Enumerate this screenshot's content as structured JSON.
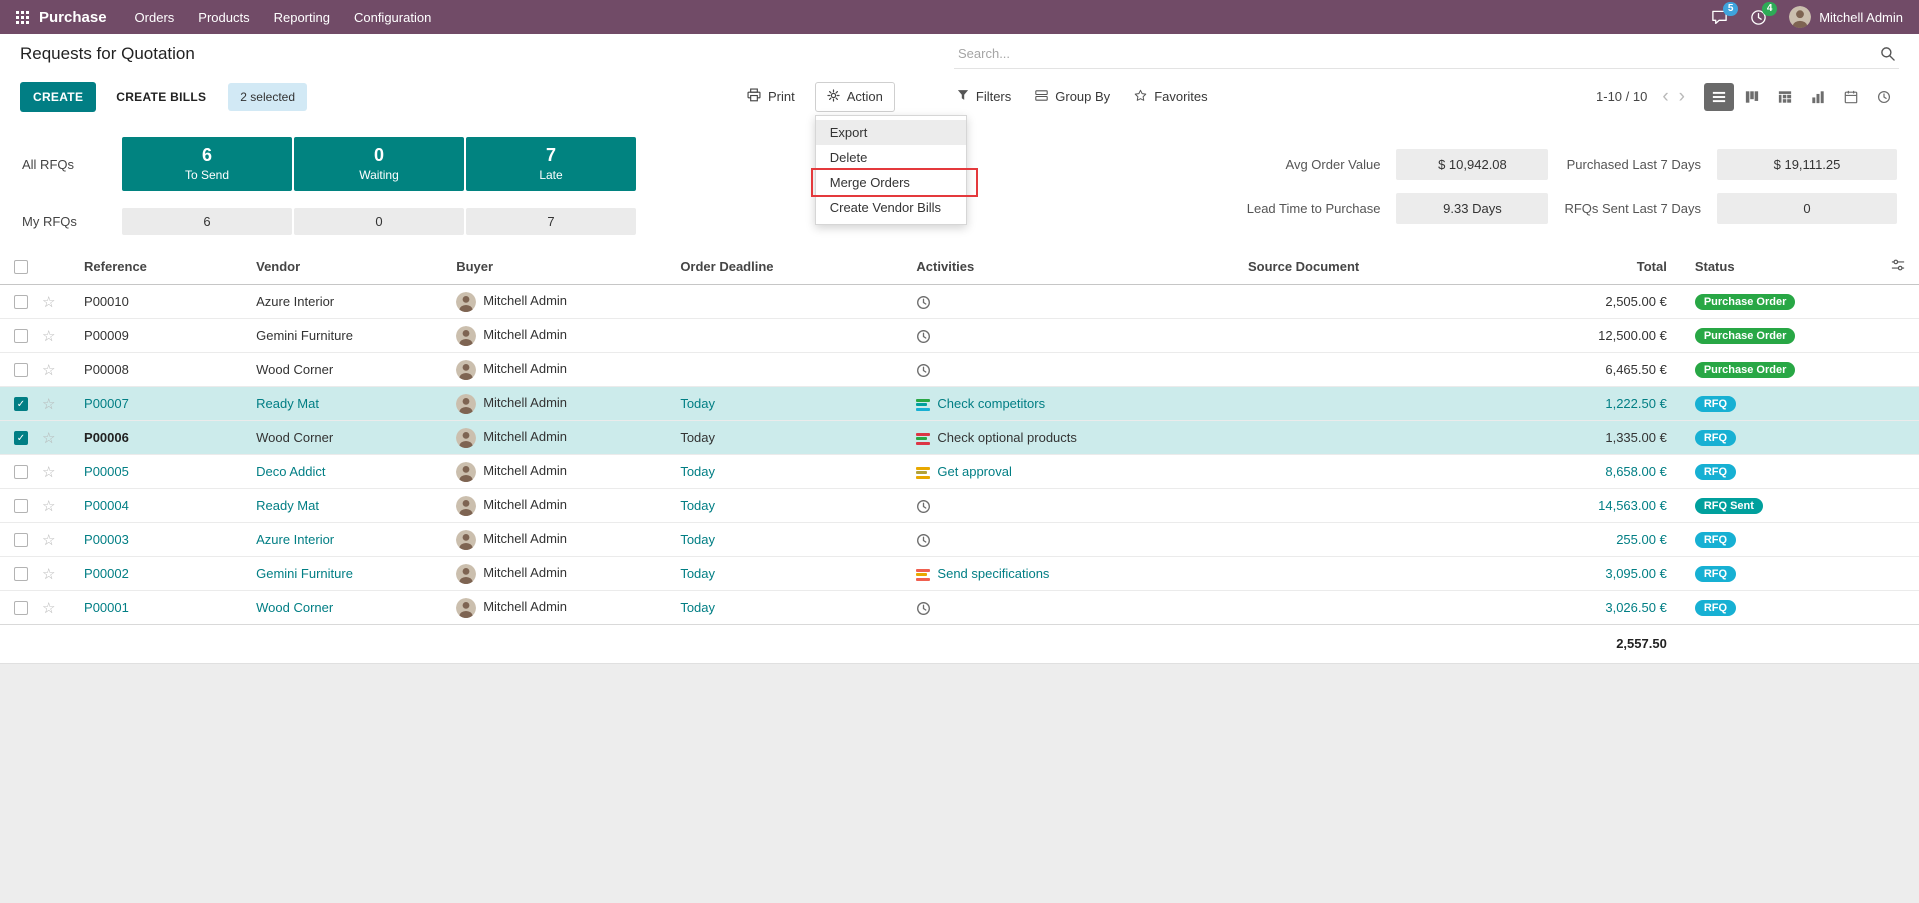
{
  "colors": {
    "brand": "#714B67",
    "accent": "#017e84",
    "kpi_box": "#018380",
    "selected_row": "#ccebeb",
    "badge_purchase_order": "#28a745",
    "badge_rfq": "#17b0d3",
    "badge_rfq_sent": "#00a09d",
    "annotation_red": "#e4393c"
  },
  "icons": {
    "apps-grid": "grid-3x3-dots",
    "messages": "speech-bubble",
    "activities": "clock",
    "search": "magnifier",
    "print": "printer",
    "action": "gear",
    "filters": "funnel",
    "group-by": "layers",
    "favorites": "star",
    "view-list": "list-lines",
    "view-kanban": "kanban-columns",
    "view-pivot": "pivot-table",
    "view-graph": "bar-chart",
    "view-calendar": "calendar",
    "view-activity": "clock",
    "optional-columns": "sliders",
    "row-activity": "clock",
    "row-star": "star-outline"
  },
  "topbar": {
    "app_name": "Purchase",
    "menus": [
      "Orders",
      "Products",
      "Reporting",
      "Configuration"
    ],
    "messages_badge": "5",
    "activities_badge": "4",
    "user_name": "Mitchell Admin"
  },
  "breadcrumb": {
    "title": "Requests for Quotation"
  },
  "search": {
    "placeholder": "Search..."
  },
  "controls": {
    "create_label": "CREATE",
    "create_bills_label": "CREATE BILLS",
    "selection_label": "2 selected",
    "print_label": "Print",
    "action_label": "Action",
    "filters_label": "Filters",
    "group_by_label": "Group By",
    "favorites_label": "Favorites",
    "pager_text": "1-10 / 10",
    "active_view": "list"
  },
  "action_menu": {
    "items": [
      "Export",
      "Delete",
      "Merge Orders",
      "Create Vendor Bills"
    ],
    "hovered_item": "Export",
    "highlighted_item": "Merge Orders"
  },
  "dashboard": {
    "row_labels": [
      "All RFQs",
      "My RFQs"
    ],
    "boxes": [
      {
        "value": "6",
        "label": "To Send",
        "my_value": "6"
      },
      {
        "value": "0",
        "label": "Waiting",
        "my_value": "0"
      },
      {
        "value": "7",
        "label": "Late",
        "my_value": "7"
      }
    ],
    "stats": [
      {
        "label": "Avg Order Value",
        "value": "$ 10,942.08"
      },
      {
        "label": "Purchased Last 7 Days",
        "value": "$ 19,111.25"
      },
      {
        "label": "Lead Time to Purchase",
        "value": "9.33 Days"
      },
      {
        "label": "RFQs Sent Last 7 Days",
        "value": "0"
      }
    ]
  },
  "table": {
    "columns": [
      "Reference",
      "Vendor",
      "Buyer",
      "Order Deadline",
      "Activities",
      "Source Document",
      "Total",
      "Status"
    ],
    "rows": [
      {
        "reference": "P00010",
        "vendor": "Azure Interior",
        "buyer": "Mitchell Admin",
        "deadline": "",
        "activity_icon": "clock",
        "activity_label": "",
        "activity_colors": [],
        "source": "",
        "total": "2,505.00 €",
        "status": "Purchase Order",
        "status_type": "po",
        "selected": false,
        "accent": false,
        "ref_bold": false
      },
      {
        "reference": "P00009",
        "vendor": "Gemini Furniture",
        "buyer": "Mitchell Admin",
        "deadline": "",
        "activity_icon": "clock",
        "activity_label": "",
        "activity_colors": [],
        "source": "",
        "total": "12,500.00 €",
        "status": "Purchase Order",
        "status_type": "po",
        "selected": false,
        "accent": false,
        "ref_bold": false
      },
      {
        "reference": "P00008",
        "vendor": "Wood Corner",
        "buyer": "Mitchell Admin",
        "deadline": "",
        "activity_icon": "clock",
        "activity_label": "",
        "activity_colors": [],
        "source": "",
        "total": "6,465.50 €",
        "status": "Purchase Order",
        "status_type": "po",
        "selected": false,
        "accent": false,
        "ref_bold": false
      },
      {
        "reference": "P00007",
        "vendor": "Ready Mat",
        "buyer": "Mitchell Admin",
        "deadline": "Today",
        "activity_icon": "stack",
        "activity_label": "Check competitors",
        "activity_colors": [
          "#28a745",
          "#00a09d",
          "#17b0d3"
        ],
        "source": "",
        "total": "1,222.50 €",
        "status": "RFQ",
        "status_type": "rfq",
        "selected": true,
        "accent": true,
        "ref_bold": false
      },
      {
        "reference": "P00006",
        "vendor": "Wood Corner",
        "buyer": "Mitchell Admin",
        "deadline": "Today",
        "activity_icon": "stack",
        "activity_label": "Check optional products",
        "activity_colors": [
          "#dc3545",
          "#28a745",
          "#dc3545"
        ],
        "source": "",
        "total": "1,335.00 €",
        "status": "RFQ",
        "status_type": "rfq",
        "selected": true,
        "accent": false,
        "ref_bold": true
      },
      {
        "reference": "P00005",
        "vendor": "Deco Addict",
        "buyer": "Mitchell Admin",
        "deadline": "Today",
        "activity_icon": "stack",
        "activity_label": "Get approval",
        "activity_colors": [
          "#e8a800",
          "#b3a239",
          "#e8a800"
        ],
        "source": "",
        "total": "8,658.00 €",
        "status": "RFQ",
        "status_type": "rfq",
        "selected": false,
        "accent": true,
        "ref_bold": false
      },
      {
        "reference": "P00004",
        "vendor": "Ready Mat",
        "buyer": "Mitchell Admin",
        "deadline": "Today",
        "activity_icon": "clock",
        "activity_label": "",
        "activity_colors": [],
        "source": "",
        "total": "14,563.00 €",
        "status": "RFQ Sent",
        "status_type": "rfq_sent",
        "selected": false,
        "accent": true,
        "ref_bold": false
      },
      {
        "reference": "P00003",
        "vendor": "Azure Interior",
        "buyer": "Mitchell Admin",
        "deadline": "Today",
        "activity_icon": "clock",
        "activity_label": "",
        "activity_colors": [],
        "source": "",
        "total": "255.00 €",
        "status": "RFQ",
        "status_type": "rfq",
        "selected": false,
        "accent": true,
        "ref_bold": false
      },
      {
        "reference": "P00002",
        "vendor": "Gemini Furniture",
        "buyer": "Mitchell Admin",
        "deadline": "Today",
        "activity_icon": "stack",
        "activity_label": "Send specifications",
        "activity_colors": [
          "#f06050",
          "#e8a800",
          "#f06050"
        ],
        "source": "",
        "total": "3,095.00 €",
        "status": "RFQ",
        "status_type": "rfq",
        "selected": false,
        "accent": true,
        "ref_bold": false
      },
      {
        "reference": "P00001",
        "vendor": "Wood Corner",
        "buyer": "Mitchell Admin",
        "deadline": "Today",
        "activity_icon": "clock",
        "activity_label": "",
        "activity_colors": [],
        "source": "",
        "total": "3,026.50 €",
        "status": "RFQ",
        "status_type": "rfq",
        "selected": false,
        "accent": true,
        "ref_bold": false
      }
    ],
    "footer_total": "2,557.50"
  }
}
